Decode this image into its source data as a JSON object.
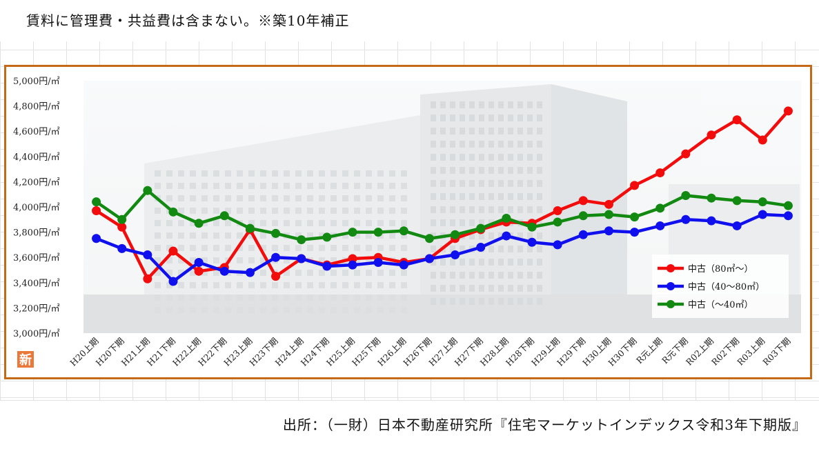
{
  "header": {
    "note": "賃料に管理費・共益費は含まない。※築10年補正"
  },
  "footer": {
    "source": "出所：（一財）日本不動産研究所『住宅マーケットインデックス令和3年下期版』"
  },
  "badge": {
    "label": "新",
    "color": "#e8793a"
  },
  "colors": {
    "frame": "#c46a16"
  },
  "chart_data": {
    "type": "line",
    "title": "",
    "xlabel": "",
    "ylabel": "",
    "ylim": [
      3000,
      5000
    ],
    "y_ticks": [
      3000,
      3200,
      3400,
      3600,
      3800,
      4000,
      4200,
      4400,
      4600,
      4800,
      5000
    ],
    "y_tick_labels": [
      "3,000円/㎡",
      "3,200円/㎡",
      "3,400円/㎡",
      "3,600円/㎡",
      "3,800円/㎡",
      "4,000円/㎡",
      "4,200円/㎡",
      "4,400円/㎡",
      "4,600円/㎡",
      "4,800円/㎡",
      "5,000円/㎡"
    ],
    "categories": [
      "H20上期",
      "H20下期",
      "H21上期",
      "H21下期",
      "H22上期",
      "H22下期",
      "H23上期",
      "H23下期",
      "H24上期",
      "H24下期",
      "H25上期",
      "H25下期",
      "H26上期",
      "H26下期",
      "H27上期",
      "H27下期",
      "H28上期",
      "H28下期",
      "H29上期",
      "H29下期",
      "H30上期",
      "H30下期",
      "R元上期",
      "R元下期",
      "R02上期",
      "R02下期",
      "R03上期",
      "R03下期"
    ],
    "legend_position": "right",
    "grid": false,
    "series": [
      {
        "name": "中古（80㎡～）",
        "color": "#f20c0c",
        "values": [
          3970,
          3840,
          3430,
          3650,
          3490,
          3520,
          3820,
          3450,
          3590,
          3540,
          3590,
          3600,
          3560,
          3590,
          3750,
          3820,
          3880,
          3870,
          3970,
          4050,
          4020,
          4170,
          4270,
          4420,
          4570,
          4690,
          4530,
          4760
        ]
      },
      {
        "name": "中古（40～80㎡）",
        "color": "#1010ee",
        "values": [
          3750,
          3670,
          3620,
          3410,
          3560,
          3490,
          3480,
          3600,
          3590,
          3530,
          3540,
          3560,
          3540,
          3590,
          3620,
          3680,
          3770,
          3720,
          3700,
          3780,
          3810,
          3800,
          3850,
          3900,
          3890,
          3850,
          3940,
          3930
        ]
      },
      {
        "name": "中古（～40㎡）",
        "color": "#128a12",
        "values": [
          4040,
          3900,
          4130,
          3960,
          3870,
          3930,
          3830,
          3790,
          3740,
          3760,
          3800,
          3800,
          3810,
          3750,
          3780,
          3830,
          3910,
          3840,
          3880,
          3930,
          3940,
          3920,
          3990,
          4090,
          4070,
          4050,
          4040,
          4010
        ]
      }
    ]
  }
}
